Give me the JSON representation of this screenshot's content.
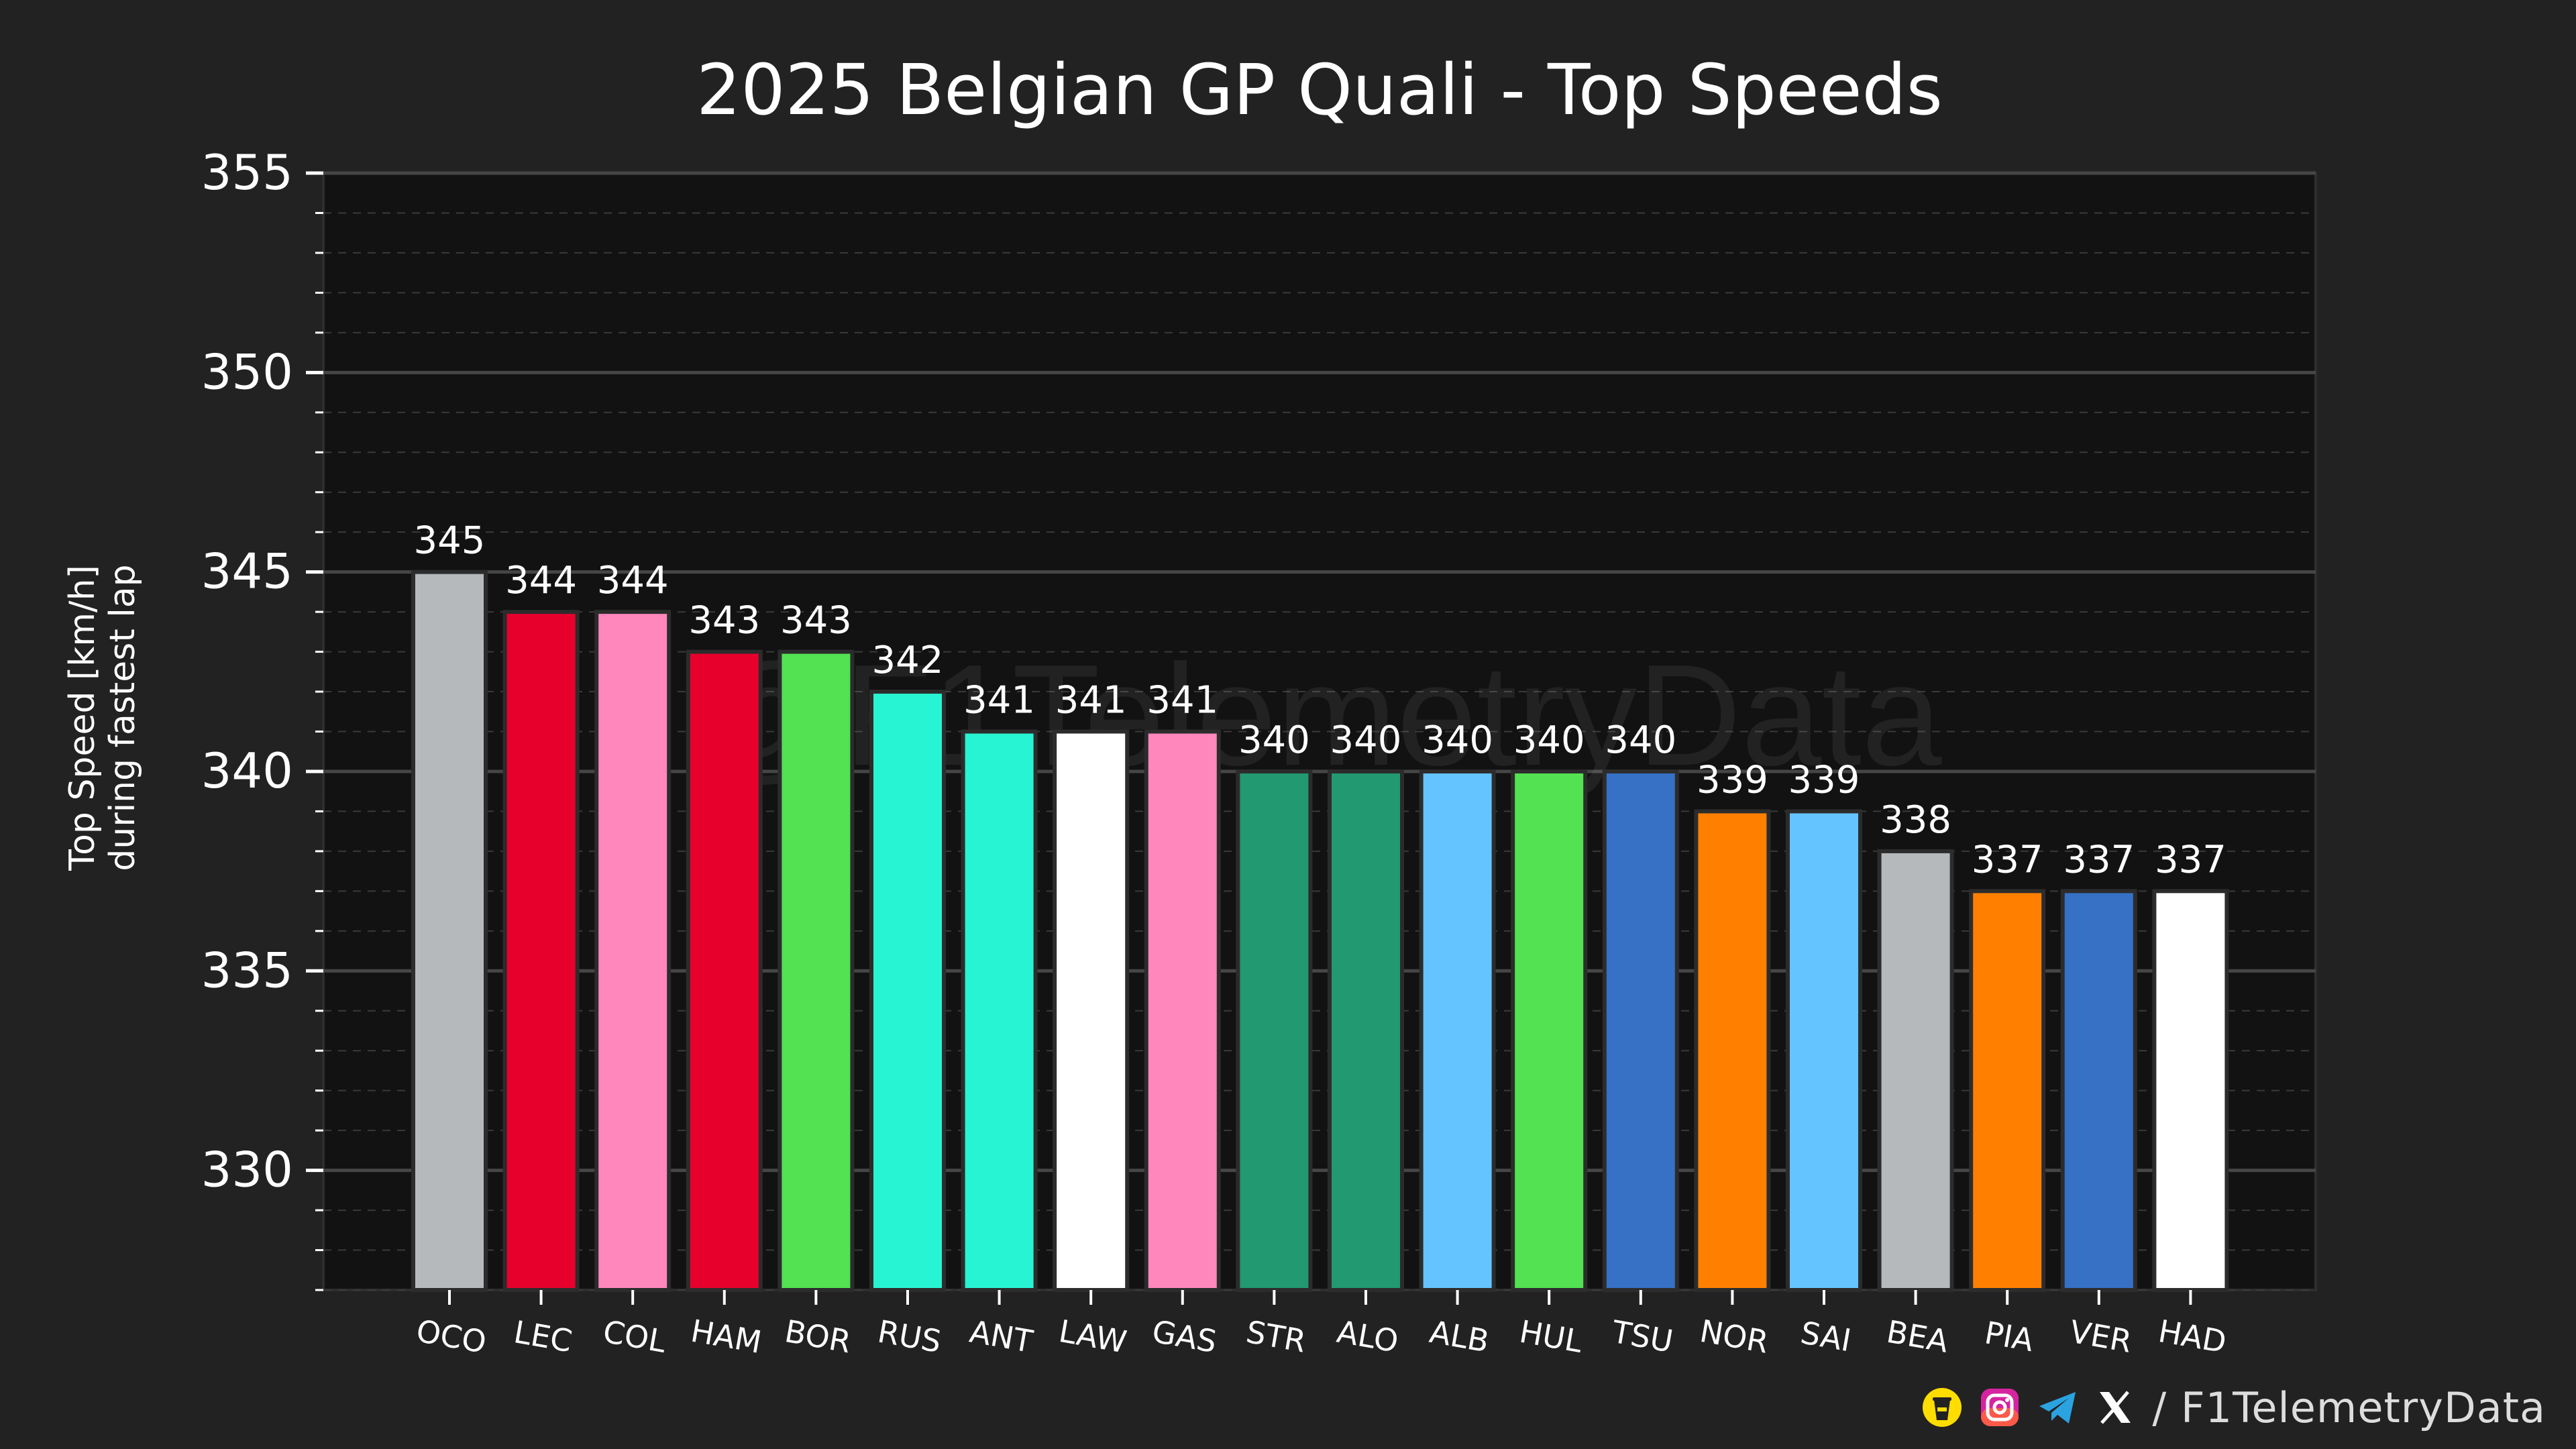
{
  "chart_data": {
    "type": "bar",
    "title": "2025 Belgian GP Quali - Top Speeds",
    "xlabel": "",
    "ylabel_line1": "Top Speed [km/h]",
    "ylabel_line2": "during fastest lap",
    "ylim": [
      327,
      355
    ],
    "major_ticks": [
      330,
      335,
      340,
      345,
      350,
      355
    ],
    "minor_tick_step": 1,
    "grid": true,
    "watermark": "@F1TelemetryData",
    "categories": [
      "OCO",
      "LEC",
      "COL",
      "HAM",
      "BOR",
      "RUS",
      "ANT",
      "LAW",
      "GAS",
      "STR",
      "ALO",
      "ALB",
      "HUL",
      "TSU",
      "NOR",
      "SAI",
      "BEA",
      "PIA",
      "VER",
      "HAD"
    ],
    "values": [
      345,
      344,
      344,
      343,
      343,
      342,
      341,
      341,
      341,
      340,
      340,
      340,
      340,
      340,
      339,
      339,
      338,
      337,
      337,
      337
    ],
    "colors": [
      "#b5b9bc",
      "#e8002d",
      "#ff87bc",
      "#e8002d",
      "#52e252",
      "#27f4d2",
      "#27f4d2",
      "#ffffff",
      "#ff87bc",
      "#229971",
      "#229971",
      "#64c4ff",
      "#52e252",
      "#3671c6",
      "#ff8000",
      "#64c4ff",
      "#b5b9bc",
      "#ff8000",
      "#3671c6",
      "#ffffff"
    ]
  },
  "footer": {
    "handle": "/ F1TelemetryData",
    "icons": [
      "buymeacoffee-icon",
      "instagram-icon",
      "telegram-icon",
      "x-icon"
    ]
  }
}
